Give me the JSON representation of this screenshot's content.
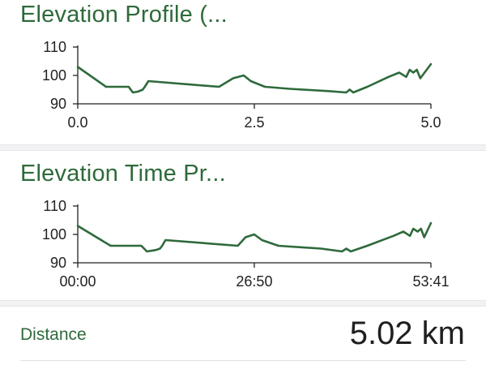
{
  "charts": [
    {
      "title": "Elevation Profile (...",
      "chart_data": {
        "type": "line",
        "title": "Elevation Profile (...",
        "xlabel": "",
        "ylabel": "",
        "xlim": [
          0,
          5.0
        ],
        "ylim": [
          90,
          110
        ],
        "x_ticks": [
          0,
          2.5,
          5.0
        ],
        "x_tick_labels": [
          "0.0",
          "2.5",
          "5.0"
        ],
        "y_ticks": [
          90,
          100,
          110
        ],
        "y_tick_labels": [
          "90",
          "100",
          "110"
        ],
        "grid": false,
        "color": "#2e6a3b",
        "series": [
          {
            "x": [
              0,
              0.4,
              0.72,
              0.78,
              0.85,
              0.92,
              0.95,
              1.0,
              2.0,
              2.2,
              2.35,
              2.45,
              2.65,
              3.0,
              3.55,
              3.8,
              3.85,
              3.9,
              4.1,
              4.4,
              4.55,
              4.65,
              4.7,
              4.75,
              4.8,
              4.85,
              5.0
            ],
            "y": [
              103,
              96,
              96,
              94,
              94.3,
              95,
              96,
              98,
              96,
              99,
              100,
              98,
              96,
              95.3,
              94.5,
              94,
              95,
              94,
              96,
              99.5,
              101,
              99.5,
              102,
              101,
              102,
              99,
              104
            ]
          }
        ]
      }
    },
    {
      "title": "Elevation Time Pr...",
      "chart_data": {
        "type": "line",
        "title": "Elevation Time Pr...",
        "xlabel": "",
        "ylabel": "",
        "xlim": [
          "00:00",
          "53:41"
        ],
        "ylim": [
          90,
          110
        ],
        "x_ticks": [
          "00:00",
          "26:50",
          "53:41"
        ],
        "x_tick_labels": [
          "00:00",
          "26:50",
          "53:41"
        ],
        "y_ticks": [
          90,
          100,
          110
        ],
        "y_tick_labels": [
          "90",
          "100",
          "110"
        ],
        "grid": false,
        "color": "#2e6a3b",
        "series": [
          {
            "x": [
              "00:00",
              "05:00",
              "09:40",
              "10:30",
              "11:50",
              "12:30",
              "12:50",
              "13:20",
              "24:20",
              "25:30",
              "26:50",
              "28:00",
              "30:30",
              "37:00",
              "40:10",
              "40:50",
              "41:30",
              "44:00",
              "48:00",
              "49:30",
              "50:30",
              "51:00",
              "51:40",
              "52:10",
              "52:40",
              "53:41"
            ],
            "y": [
              103,
              96,
              96,
              94,
              94.5,
              95,
              96,
              98,
              96,
              99,
              100,
              98,
              96,
              95,
              94,
              95,
              94,
              96,
              99.5,
              101,
              99.5,
              102,
              101,
              102,
              99,
              104
            ]
          }
        ]
      }
    }
  ],
  "stats": {
    "distance_label": "Distance",
    "distance_value": "5.02 km"
  }
}
